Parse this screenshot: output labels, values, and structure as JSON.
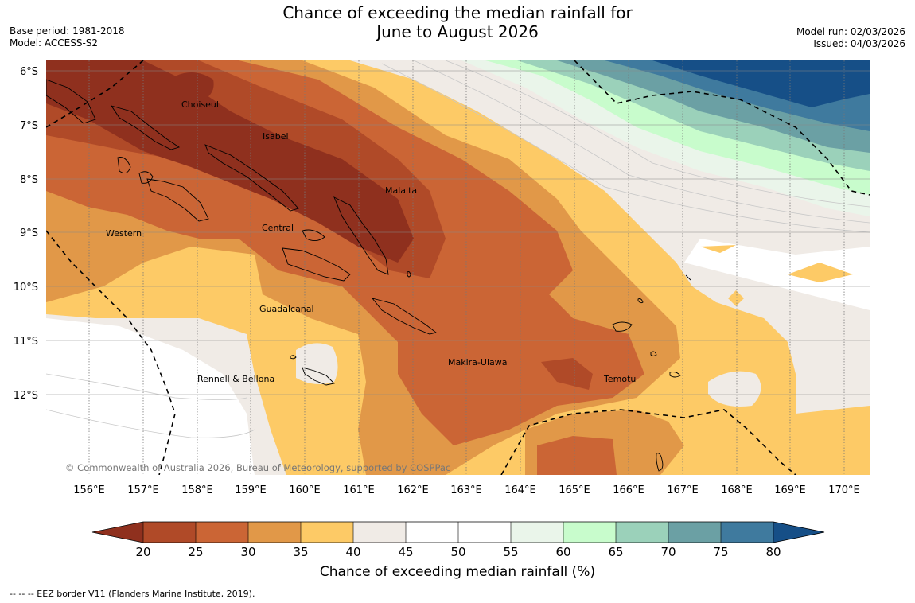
{
  "header": {
    "title_line1": "Chance of exceeding the median rainfall for",
    "title_line2": "June to August 2026",
    "base_period": "Base period: 1981-2018",
    "model": "Model: ACCESS-S2",
    "model_run": "Model run: 02/03/2026",
    "issued": "Issued: 04/03/2026"
  },
  "map": {
    "lat_labels": [
      "6°S",
      "7°S",
      "8°S",
      "9°S",
      "10°S",
      "11°S",
      "12°S"
    ],
    "lon_labels": [
      "156°E",
      "157°E",
      "158°E",
      "159°E",
      "160°E",
      "161°E",
      "162°E",
      "163°E",
      "164°E",
      "165°E",
      "166°E",
      "167°E",
      "168°E",
      "169°E",
      "170°E"
    ],
    "regions": [
      "Choiseul",
      "Isabel",
      "Malaita",
      "Western",
      "Central",
      "Guadalcanal",
      "Makira-Ulawa",
      "Rennell & Bellona",
      "Temotu"
    ],
    "copyright": "© Commonwealth of Australia 2026, Bureau of Meteorology, supported by COSPPac"
  },
  "colorbar": {
    "ticks": [
      "20",
      "25",
      "30",
      "35",
      "40",
      "45",
      "50",
      "55",
      "60",
      "65",
      "70",
      "75",
      "80"
    ],
    "caption": "Chance of exceeding median rainfall (%)"
  },
  "legend": {
    "eez_note": "--  --  -- EEZ border V11 (Flanders Marine Institute, 2019)."
  },
  "colors": {
    "c_lt20": "#8f301e",
    "c20_25": "#b04a28",
    "c25_30": "#cb6535",
    "c30_35": "#e19848",
    "c35_40": "#fdca66",
    "c40_45": "#f0ebe6",
    "c45_55": "#ffffff",
    "c55_60": "#eaf5ea",
    "c60_65": "#c8fccc",
    "c65_70": "#9bd1ba",
    "c70_75": "#6ba0a4",
    "c75_80": "#3f7a9e",
    "c_gt80": "#164f87"
  }
}
